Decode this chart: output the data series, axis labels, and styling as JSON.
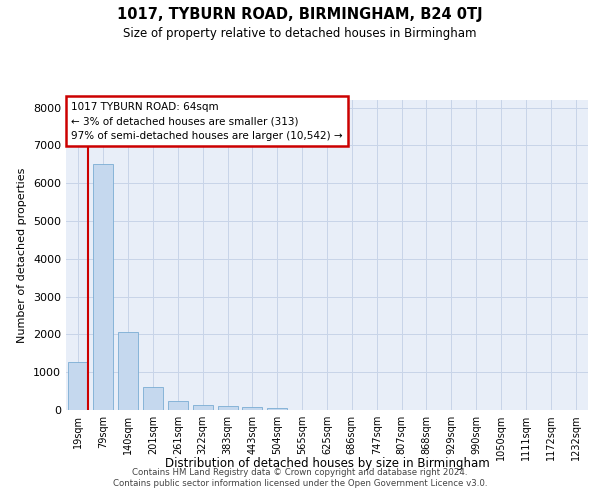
{
  "title": "1017, TYBURN ROAD, BIRMINGHAM, B24 0TJ",
  "subtitle": "Size of property relative to detached houses in Birmingham",
  "xlabel": "Distribution of detached houses by size in Birmingham",
  "ylabel": "Number of detached properties",
  "footer_line1": "Contains HM Land Registry data © Crown copyright and database right 2024.",
  "footer_line2": "Contains public sector information licensed under the Open Government Licence v3.0.",
  "annotation_title": "1017 TYBURN ROAD: 64sqm",
  "annotation_line2": "← 3% of detached houses are smaller (313)",
  "annotation_line3": "97% of semi-detached houses are larger (10,542) →",
  "bar_color": "#c5d8ee",
  "bar_edge_color": "#7aadd4",
  "highlight_color": "#cc0000",
  "grid_color": "#c8d4e8",
  "background_color": "#e8eef8",
  "categories": [
    "19sqm",
    "79sqm",
    "140sqm",
    "201sqm",
    "261sqm",
    "322sqm",
    "383sqm",
    "443sqm",
    "504sqm",
    "565sqm",
    "625sqm",
    "686sqm",
    "747sqm",
    "807sqm",
    "868sqm",
    "929sqm",
    "990sqm",
    "1050sqm",
    "1111sqm",
    "1172sqm",
    "1232sqm"
  ],
  "values": [
    1280,
    6500,
    2070,
    620,
    250,
    130,
    105,
    70,
    60,
    0,
    0,
    0,
    0,
    0,
    0,
    0,
    0,
    0,
    0,
    0,
    0
  ],
  "ylim": [
    0,
    8200
  ],
  "red_line_x": 0.4
}
